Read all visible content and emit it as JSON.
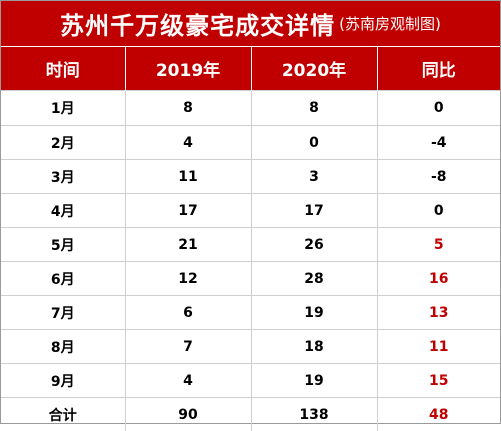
{
  "title": {
    "main": "苏州千万级豪宅成交详情",
    "sub": "(苏南房观制图)"
  },
  "headers": [
    "时间",
    "2019年",
    "2020年",
    "同比"
  ],
  "rows": [
    [
      "1月",
      "8",
      "8",
      "0"
    ],
    [
      "2月",
      "4",
      "0",
      "-4"
    ],
    [
      "3月",
      "11",
      "3",
      "-8"
    ],
    [
      "4月",
      "17",
      "17",
      "0"
    ],
    [
      "5月",
      "21",
      "26",
      "5"
    ],
    [
      "6月",
      "12",
      "28",
      "16"
    ],
    [
      "7月",
      "6",
      "19",
      "13"
    ],
    [
      "8月",
      "7",
      "18",
      "11"
    ],
    [
      "9月",
      "4",
      "19",
      "15"
    ],
    [
      "合计",
      "90",
      "138",
      "48"
    ]
  ],
  "colors": {
    "header_bg": "#c00000",
    "positive_text": "#c00000"
  }
}
